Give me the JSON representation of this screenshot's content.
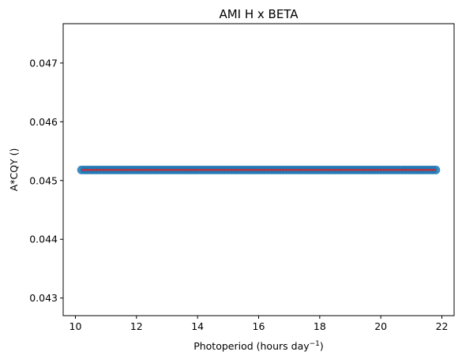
{
  "chart_data": {
    "type": "scatter",
    "title": "AMI H x BETA",
    "xlabel_base": "Photoperiod (hours day",
    "xlabel_sup": "−1",
    "xlabel_close": ")",
    "ylabel": "A*CQY ()",
    "xlim": [
      9.6,
      22.4
    ],
    "ylim": [
      0.0427,
      0.04767
    ],
    "xticks": [
      10,
      12,
      14,
      16,
      18,
      20,
      22
    ],
    "yticks": [
      0.043,
      0.044,
      0.045,
      0.046,
      0.047
    ],
    "ytick_labels": [
      "0.043",
      "0.044",
      "0.045",
      "0.046",
      "0.047"
    ],
    "series": [
      {
        "kind": "scatter",
        "color": "#1f77b4",
        "x_start": 10.2,
        "x_end": 21.8,
        "y": 0.04518
      },
      {
        "kind": "line",
        "color": "#d62728",
        "x": [
          10.2,
          21.8
        ],
        "y": [
          0.04518,
          0.04518
        ]
      }
    ],
    "grid": false
  }
}
